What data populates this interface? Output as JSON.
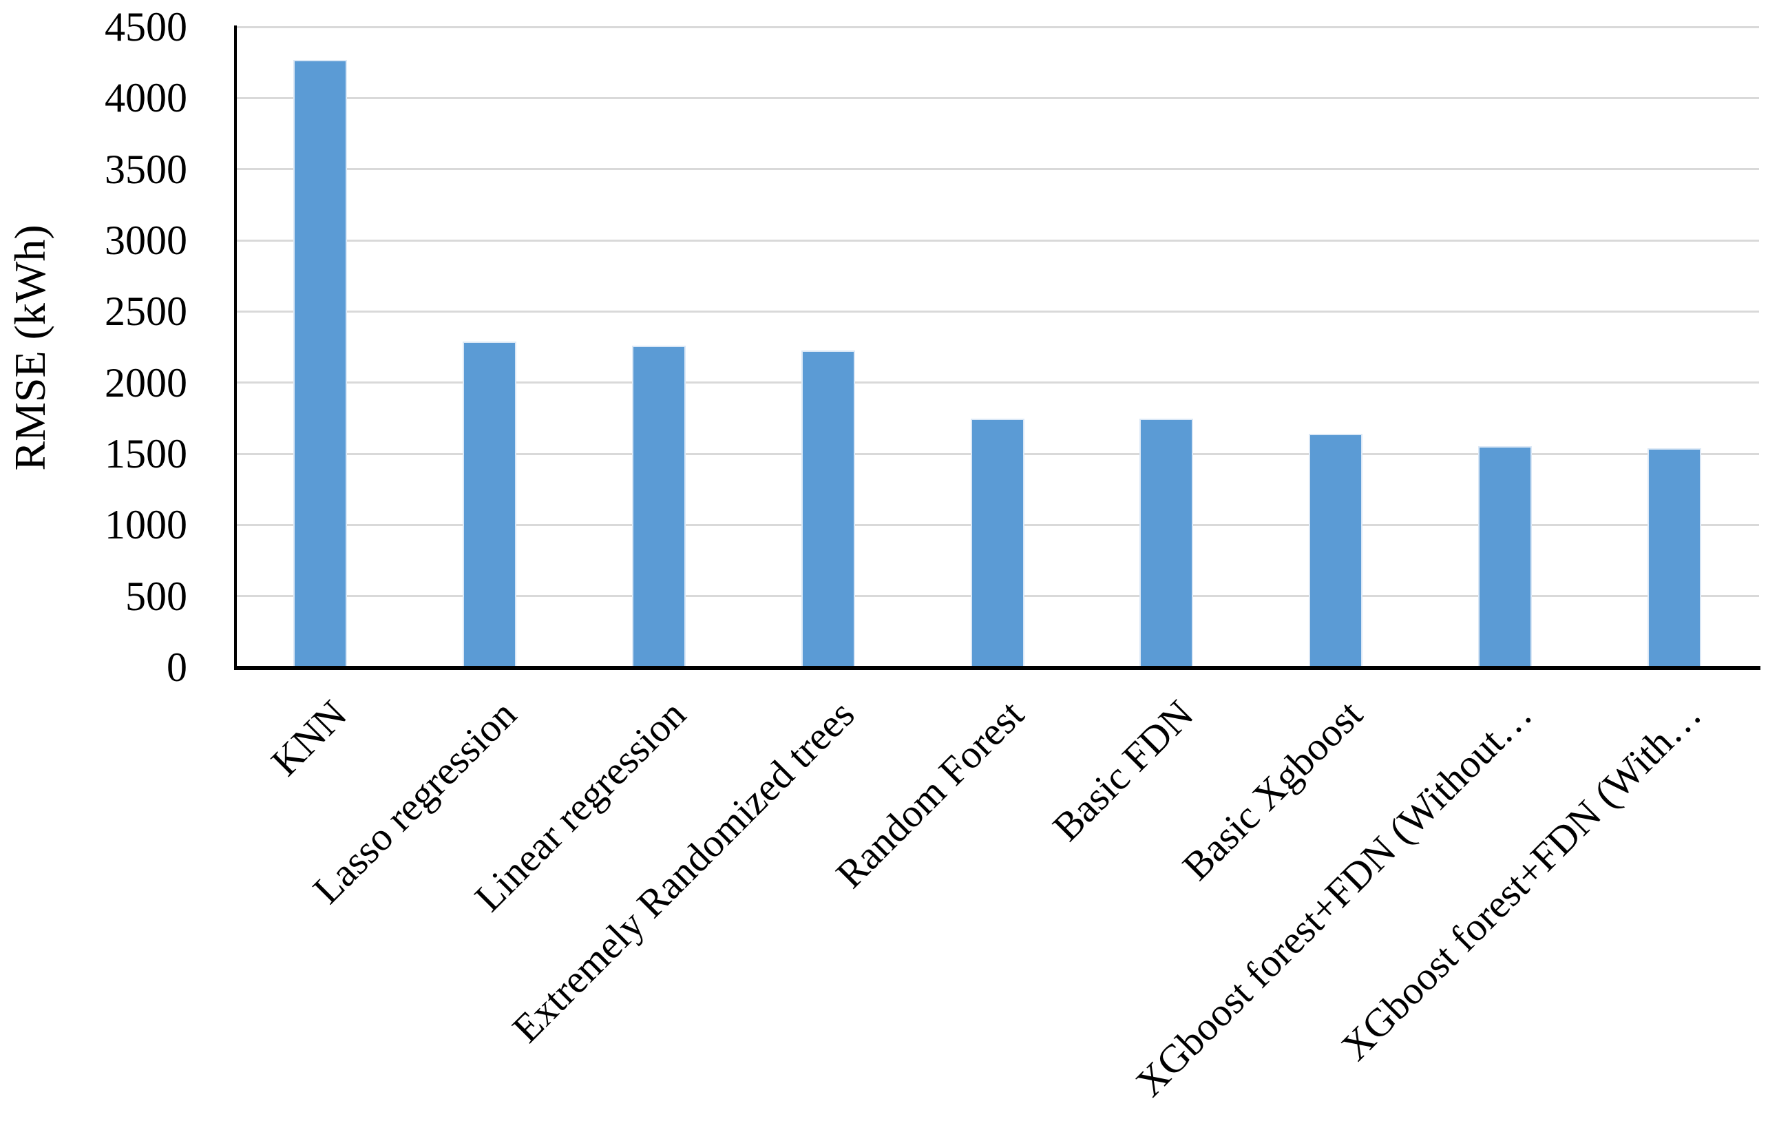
{
  "chart_data": {
    "type": "bar",
    "title": "",
    "xlabel": "",
    "ylabel": "RMSE (kWh)",
    "categories": [
      "KNN",
      "Lasso regression",
      "Linear regression",
      "Extremely Randomized trees",
      "Random Forest",
      "Basic FDN",
      "Basic Xgboost",
      "XGboost forest+FDN (Without…",
      "XGboost forest+FDN (With…"
    ],
    "values": [
      4270,
      2290,
      2260,
      2225,
      1745,
      1745,
      1640,
      1555,
      1540
    ],
    "ylim": [
      0,
      4500
    ],
    "ytick_step": 500,
    "ytick_labels": [
      "0",
      "500",
      "1000",
      "1500",
      "2000",
      "2500",
      "3000",
      "3500",
      "4000",
      "4500"
    ],
    "grid": "horizontal",
    "legend": "none",
    "bar_color": "#5B9BD5",
    "bar_edge_color": "#DBE8F6",
    "gridline_color": "#D9D9D9",
    "axis_color": "#000000",
    "text_color": "#000000",
    "background_color": "#FFFFFF"
  }
}
